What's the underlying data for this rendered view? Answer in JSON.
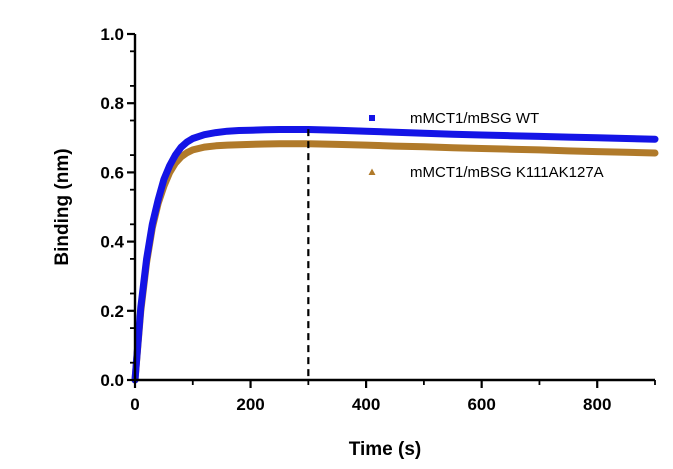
{
  "chart_data": {
    "type": "line",
    "xlabel": "Time (s)",
    "ylabel": "Binding (nm)",
    "xlim": [
      0,
      900
    ],
    "ylim": [
      0,
      1.0
    ],
    "x_ticks": [
      0,
      200,
      400,
      600,
      800
    ],
    "x_tick_labels": [
      "0",
      "200",
      "400",
      "600",
      "800"
    ],
    "y_ticks": [
      0,
      0.2,
      0.4,
      0.6,
      0.8,
      1.0
    ],
    "y_tick_labels": [
      "0.0",
      "0.2",
      "0.4",
      "0.6",
      "0.8",
      "1.0"
    ],
    "grid": false,
    "legend_position": "right",
    "vline_x": 300,
    "series": [
      {
        "name": "mMCT1/mBSG WT",
        "color": "#1414e6",
        "marker": "square",
        "x": [
          0,
          10,
          20,
          30,
          40,
          50,
          60,
          70,
          80,
          90,
          100,
          120,
          140,
          160,
          180,
          200,
          225,
          250,
          275,
          300,
          350,
          400,
          450,
          500,
          550,
          600,
          650,
          700,
          750,
          800,
          850,
          900
        ],
        "y": [
          0.0,
          0.21,
          0.35,
          0.45,
          0.52,
          0.58,
          0.62,
          0.65,
          0.673,
          0.688,
          0.698,
          0.709,
          0.715,
          0.719,
          0.721,
          0.722,
          0.723,
          0.724,
          0.724,
          0.724,
          0.722,
          0.719,
          0.716,
          0.713,
          0.71,
          0.708,
          0.706,
          0.704,
          0.702,
          0.7,
          0.698,
          0.696
        ]
      },
      {
        "name": "mMCT1/mBSG K111AK127A",
        "color": "#b07a2a",
        "marker": "triangle",
        "x": [
          0,
          10,
          20,
          30,
          40,
          50,
          60,
          70,
          80,
          90,
          100,
          120,
          140,
          160,
          180,
          200,
          225,
          250,
          275,
          300,
          350,
          400,
          450,
          500,
          550,
          600,
          650,
          700,
          750,
          800,
          850,
          900
        ],
        "y": [
          0.0,
          0.2,
          0.34,
          0.44,
          0.51,
          0.56,
          0.6,
          0.627,
          0.645,
          0.657,
          0.665,
          0.673,
          0.677,
          0.679,
          0.68,
          0.681,
          0.682,
          0.683,
          0.683,
          0.683,
          0.681,
          0.679,
          0.676,
          0.674,
          0.671,
          0.669,
          0.667,
          0.665,
          0.662,
          0.66,
          0.658,
          0.656
        ]
      }
    ]
  }
}
